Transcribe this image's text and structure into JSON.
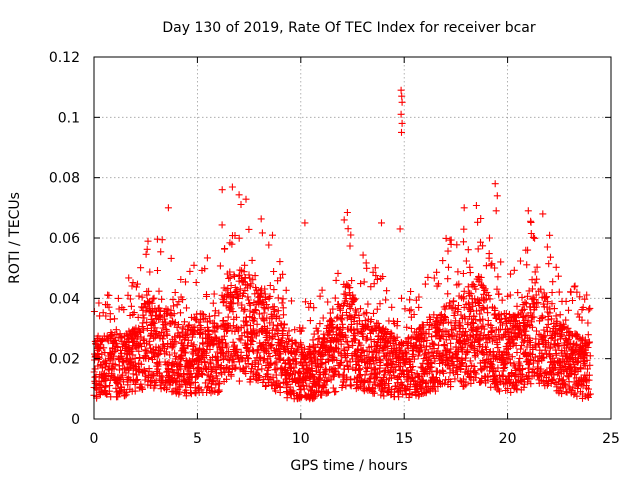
{
  "chart_data": {
    "type": "scatter",
    "title": "Day 130 of 2019, Rate Of TEC Index for receiver bcar",
    "xlabel": "GPS time / hours",
    "ylabel": "ROTI / TECUs",
    "xlim": [
      0,
      25
    ],
    "ylim": [
      0,
      0.12
    ],
    "x_ticks": [
      0,
      5,
      10,
      15,
      20,
      25
    ],
    "x_tick_labels": [
      "0",
      "5",
      "10",
      "15",
      "20",
      "25"
    ],
    "y_ticks": [
      0,
      0.02,
      0.04,
      0.06,
      0.08,
      0.1,
      0.12
    ],
    "y_tick_labels": [
      "0",
      "0.02",
      "0.04",
      "0.06",
      "0.08",
      "0.1",
      "0.12"
    ],
    "grid": true,
    "marker": "plus",
    "color": "#ff0000",
    "series": [
      {
        "name": "ROTI",
        "sampling_interval_hours": 0.02,
        "baseline_profile": {
          "x": [
            0,
            1,
            2,
            2.6,
            3.5,
            4.5,
            5,
            6,
            6.5,
            7.5,
            8.5,
            9.5,
            10.5,
            11.5,
            12.3,
            13,
            14,
            15,
            16,
            17,
            18,
            18.6,
            19.5,
            20.5,
            21.5,
            22.5,
            23.2,
            24
          ],
          "y": [
            0.017,
            0.018,
            0.02,
            0.027,
            0.023,
            0.019,
            0.022,
            0.021,
            0.033,
            0.03,
            0.026,
            0.016,
            0.016,
            0.021,
            0.028,
            0.022,
            0.019,
            0.016,
            0.02,
            0.024,
            0.027,
            0.03,
            0.022,
            0.022,
            0.03,
            0.02,
            0.018,
            0.016
          ]
        },
        "notable_points": [
          {
            "x": 3.6,
            "y": 0.07
          },
          {
            "x": 6.2,
            "y": 0.076
          },
          {
            "x": 10.2,
            "y": 0.065
          },
          {
            "x": 12.1,
            "y": 0.066
          },
          {
            "x": 13.9,
            "y": 0.065
          },
          {
            "x": 14.85,
            "y": 0.109
          },
          {
            "x": 14.88,
            "y": 0.107
          },
          {
            "x": 14.9,
            "y": 0.105
          },
          {
            "x": 14.85,
            "y": 0.101
          },
          {
            "x": 14.9,
            "y": 0.098
          },
          {
            "x": 14.87,
            "y": 0.095
          },
          {
            "x": 14.8,
            "y": 0.063
          },
          {
            "x": 17.9,
            "y": 0.07
          },
          {
            "x": 19.4,
            "y": 0.078
          },
          {
            "x": 19.5,
            "y": 0.074
          },
          {
            "x": 19.45,
            "y": 0.069
          },
          {
            "x": 21.0,
            "y": 0.069
          },
          {
            "x": 21.7,
            "y": 0.068
          }
        ]
      }
    ]
  }
}
